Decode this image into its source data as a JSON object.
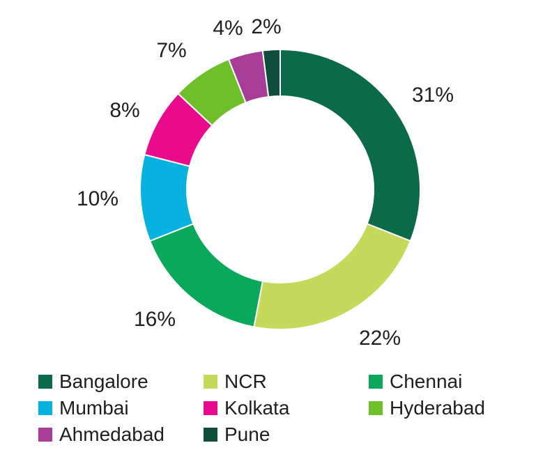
{
  "chart_data": {
    "type": "pie",
    "donut": true,
    "categories": [
      "Bangalore",
      "NCR",
      "Chennai",
      "Mumbai",
      "Kolkata",
      "Hyderabad",
      "Ahmedabad",
      "Pune"
    ],
    "values": [
      31,
      22,
      16,
      10,
      8,
      7,
      4,
      2
    ],
    "data_labels": [
      "31%",
      "22%",
      "16%",
      "10%",
      "8%",
      "7%",
      "4%",
      "2%"
    ],
    "colors": [
      "#0b6a47",
      "#c5d95a",
      "#0aa85a",
      "#07b1e0",
      "#ea0a8c",
      "#6fbf2a",
      "#a83d98",
      "#0d4d3a"
    ],
    "title": "",
    "legend_position": "bottom"
  }
}
